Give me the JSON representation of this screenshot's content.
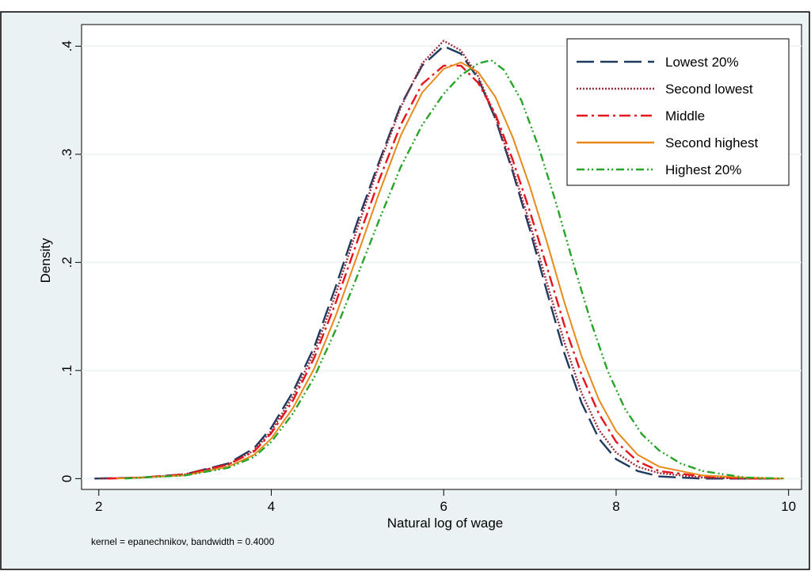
{
  "chart_data": {
    "type": "line",
    "title": "",
    "xlabel": "Natural log of wage",
    "ylabel": "Density",
    "xlim": [
      1.8,
      10.15
    ],
    "ylim": [
      -0.01,
      0.42
    ],
    "grid": true,
    "legend_position": "top-right",
    "note": "kernel = epanechnikov, bandwidth = 0.4000",
    "x_ticks": [
      {
        "value": 2,
        "label": "2"
      },
      {
        "value": 4,
        "label": "4"
      },
      {
        "value": 6,
        "label": "6"
      },
      {
        "value": 8,
        "label": "8"
      },
      {
        "value": 10,
        "label": "10"
      }
    ],
    "y_ticks": [
      {
        "value": 0,
        "label": "0"
      },
      {
        "value": 0.1,
        "label": ".1"
      },
      {
        "value": 0.2,
        "label": ".2"
      },
      {
        "value": 0.3,
        "label": ".3"
      },
      {
        "value": 0.4,
        "label": ".4"
      }
    ],
    "series": [
      {
        "name": "Lowest 20%",
        "color": "#1f3a5f",
        "dash": "dash",
        "points": [
          [
            1.95,
            0
          ],
          [
            2.5,
            0.001
          ],
          [
            3.0,
            0.004
          ],
          [
            3.5,
            0.014
          ],
          [
            3.8,
            0.028
          ],
          [
            4.0,
            0.047
          ],
          [
            4.25,
            0.08
          ],
          [
            4.5,
            0.122
          ],
          [
            4.75,
            0.178
          ],
          [
            5.0,
            0.238
          ],
          [
            5.25,
            0.293
          ],
          [
            5.5,
            0.345
          ],
          [
            5.75,
            0.382
          ],
          [
            6.0,
            0.4
          ],
          [
            6.2,
            0.393
          ],
          [
            6.4,
            0.37
          ],
          [
            6.6,
            0.333
          ],
          [
            6.8,
            0.284
          ],
          [
            7.0,
            0.23
          ],
          [
            7.2,
            0.172
          ],
          [
            7.4,
            0.116
          ],
          [
            7.6,
            0.07
          ],
          [
            7.8,
            0.037
          ],
          [
            8.0,
            0.018
          ],
          [
            8.25,
            0.007
          ],
          [
            8.5,
            0.002
          ],
          [
            9.0,
            0.0
          ],
          [
            9.5,
            0.0
          ],
          [
            9.9,
            0
          ]
        ]
      },
      {
        "name": "Second lowest",
        "color": "#9b2c3c",
        "dash": "dot",
        "points": [
          [
            2.0,
            0
          ],
          [
            2.5,
            0.001
          ],
          [
            3.0,
            0.004
          ],
          [
            3.5,
            0.013
          ],
          [
            3.8,
            0.026
          ],
          [
            4.0,
            0.044
          ],
          [
            4.25,
            0.076
          ],
          [
            4.5,
            0.117
          ],
          [
            4.75,
            0.171
          ],
          [
            5.0,
            0.232
          ],
          [
            5.25,
            0.29
          ],
          [
            5.5,
            0.343
          ],
          [
            5.75,
            0.384
          ],
          [
            6.0,
            0.405
          ],
          [
            6.2,
            0.396
          ],
          [
            6.4,
            0.372
          ],
          [
            6.6,
            0.335
          ],
          [
            6.8,
            0.287
          ],
          [
            7.0,
            0.236
          ],
          [
            7.2,
            0.18
          ],
          [
            7.4,
            0.126
          ],
          [
            7.6,
            0.079
          ],
          [
            7.8,
            0.045
          ],
          [
            8.0,
            0.024
          ],
          [
            8.25,
            0.011
          ],
          [
            8.5,
            0.005
          ],
          [
            9.0,
            0.001
          ],
          [
            9.5,
            0.0
          ],
          [
            9.9,
            0
          ]
        ]
      },
      {
        "name": "Middle",
        "color": "#e8141b",
        "dash": "dashdot",
        "points": [
          [
            2.1,
            0
          ],
          [
            2.5,
            0.001
          ],
          [
            3.0,
            0.004
          ],
          [
            3.5,
            0.013
          ],
          [
            3.8,
            0.025
          ],
          [
            4.0,
            0.042
          ],
          [
            4.25,
            0.072
          ],
          [
            4.5,
            0.112
          ],
          [
            4.75,
            0.163
          ],
          [
            5.0,
            0.22
          ],
          [
            5.25,
            0.276
          ],
          [
            5.5,
            0.327
          ],
          [
            5.75,
            0.365
          ],
          [
            6.0,
            0.382
          ],
          [
            6.2,
            0.382
          ],
          [
            6.4,
            0.366
          ],
          [
            6.6,
            0.337
          ],
          [
            6.8,
            0.295
          ],
          [
            7.0,
            0.247
          ],
          [
            7.2,
            0.195
          ],
          [
            7.4,
            0.142
          ],
          [
            7.6,
            0.096
          ],
          [
            7.8,
            0.06
          ],
          [
            8.0,
            0.034
          ],
          [
            8.25,
            0.016
          ],
          [
            8.5,
            0.007
          ],
          [
            9.0,
            0.002
          ],
          [
            9.5,
            0.0
          ],
          [
            9.9,
            0
          ]
        ]
      },
      {
        "name": "Second highest",
        "color": "#e8891a",
        "dash": "solid",
        "points": [
          [
            2.2,
            0
          ],
          [
            2.5,
            0.001
          ],
          [
            3.0,
            0.003
          ],
          [
            3.5,
            0.011
          ],
          [
            3.8,
            0.022
          ],
          [
            4.0,
            0.037
          ],
          [
            4.25,
            0.065
          ],
          [
            4.5,
            0.102
          ],
          [
            4.75,
            0.151
          ],
          [
            5.0,
            0.207
          ],
          [
            5.25,
            0.264
          ],
          [
            5.5,
            0.317
          ],
          [
            5.75,
            0.357
          ],
          [
            6.0,
            0.379
          ],
          [
            6.2,
            0.385
          ],
          [
            6.4,
            0.376
          ],
          [
            6.6,
            0.353
          ],
          [
            6.8,
            0.316
          ],
          [
            7.0,
            0.27
          ],
          [
            7.2,
            0.218
          ],
          [
            7.4,
            0.163
          ],
          [
            7.6,
            0.113
          ],
          [
            7.8,
            0.073
          ],
          [
            8.0,
            0.044
          ],
          [
            8.25,
            0.022
          ],
          [
            8.5,
            0.011
          ],
          [
            9.0,
            0.003
          ],
          [
            9.5,
            0.001
          ],
          [
            9.95,
            0
          ]
        ]
      },
      {
        "name": "Highest 20%",
        "color": "#28a428",
        "dash": "dashdotdot",
        "points": [
          [
            2.3,
            0
          ],
          [
            2.5,
            0.001
          ],
          [
            3.0,
            0.003
          ],
          [
            3.5,
            0.01
          ],
          [
            3.8,
            0.02
          ],
          [
            4.0,
            0.034
          ],
          [
            4.25,
            0.06
          ],
          [
            4.5,
            0.094
          ],
          [
            4.75,
            0.138
          ],
          [
            5.0,
            0.188
          ],
          [
            5.25,
            0.239
          ],
          [
            5.5,
            0.288
          ],
          [
            5.75,
            0.327
          ],
          [
            6.0,
            0.356
          ],
          [
            6.2,
            0.373
          ],
          [
            6.4,
            0.384
          ],
          [
            6.55,
            0.387
          ],
          [
            6.7,
            0.378
          ],
          [
            6.9,
            0.35
          ],
          [
            7.1,
            0.307
          ],
          [
            7.3,
            0.256
          ],
          [
            7.5,
            0.2
          ],
          [
            7.7,
            0.147
          ],
          [
            7.9,
            0.1
          ],
          [
            8.1,
            0.065
          ],
          [
            8.3,
            0.041
          ],
          [
            8.5,
            0.026
          ],
          [
            8.75,
            0.014
          ],
          [
            9.0,
            0.007
          ],
          [
            9.5,
            0.001
          ],
          [
            9.95,
            0
          ]
        ]
      }
    ]
  }
}
